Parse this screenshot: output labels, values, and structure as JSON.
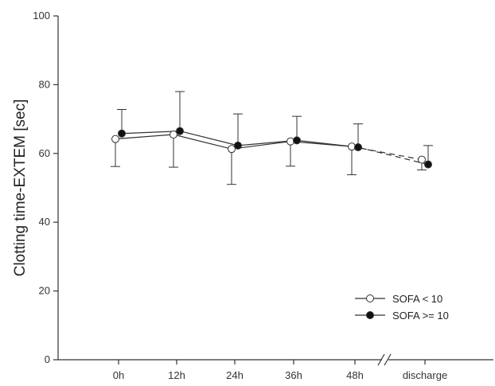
{
  "chart_data": {
    "type": "line",
    "categories": [
      "0h",
      "12h",
      "24h",
      "36h",
      "48h",
      "discharge"
    ],
    "ylabel": "Clotting time-EXTEM [sec]",
    "xlabel": "",
    "ylim": [
      0,
      100
    ],
    "yticks": [
      0,
      20,
      40,
      60,
      80,
      100
    ],
    "axis_break_between": [
      "48h",
      "discharge"
    ],
    "legend_position": "bottom-right",
    "series": [
      {
        "name": "SOFA  < 10",
        "marker": "open-circle",
        "values": [
          64.2,
          65.5,
          61.3,
          63.5,
          62.0,
          58.2
        ],
        "error_lower": [
          56.2,
          56.0,
          51.0,
          56.3,
          53.8,
          55.2
        ],
        "error_upper": null
      },
      {
        "name": "SOFA >= 10",
        "marker": "filled-circle",
        "values": [
          65.8,
          66.5,
          62.3,
          63.8,
          61.8,
          56.8
        ],
        "error_lower": null,
        "error_upper": [
          72.8,
          78.0,
          71.5,
          70.8,
          68.6,
          62.3
        ]
      }
    ],
    "colors": {
      "axis": "#333333",
      "line": "#333333",
      "open_fill": "#ffffff",
      "filled_fill": "#111111"
    }
  }
}
